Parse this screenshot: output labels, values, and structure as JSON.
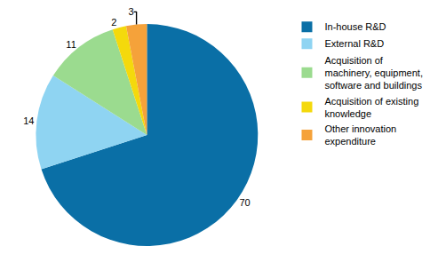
{
  "chart_data": {
    "type": "pie",
    "categories": [
      "In-house R&D",
      "External R&D",
      "Acquisition of machinery, equipment, software and buildings",
      "Acquisition of existing knowledge",
      "Other innovation expenditure"
    ],
    "values": [
      70,
      14,
      11,
      2,
      3
    ],
    "colors": [
      "#0a6fa6",
      "#8fd4f2",
      "#9bdb8f",
      "#f4d90c",
      "#f5a23a"
    ],
    "data_labels": true,
    "legend": "right"
  }
}
